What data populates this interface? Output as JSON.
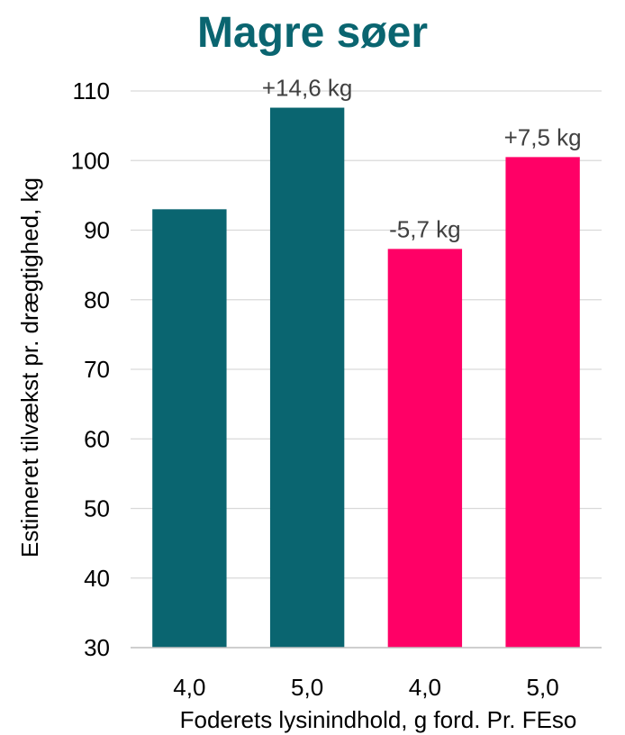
{
  "chart_data": {
    "type": "bar",
    "title": "Magre søer",
    "xlabel": "Foderets lysinindhold, g ford. Pr. FEso",
    "ylabel": "Estimeret tilvækst pr. drægtighed, kg",
    "categories": [
      "4,0",
      "5,0",
      "4,0",
      "5,0"
    ],
    "values": [
      93.0,
      107.6,
      87.3,
      100.5
    ],
    "data_labels": [
      "",
      "+14,6 kg",
      "-5,7 kg",
      "+7,5 kg"
    ],
    "bar_colors": [
      "#0a6570",
      "#0a6570",
      "#ff0066",
      "#ff0066"
    ],
    "ylim": [
      30,
      110
    ],
    "yticks": [
      30,
      40,
      50,
      60,
      70,
      80,
      90,
      100,
      110
    ],
    "grid": true,
    "legend": "none"
  },
  "colors": {
    "title": "#0a6570",
    "gridline": "#d9d9d9",
    "axis": "#bfbfbf"
  }
}
